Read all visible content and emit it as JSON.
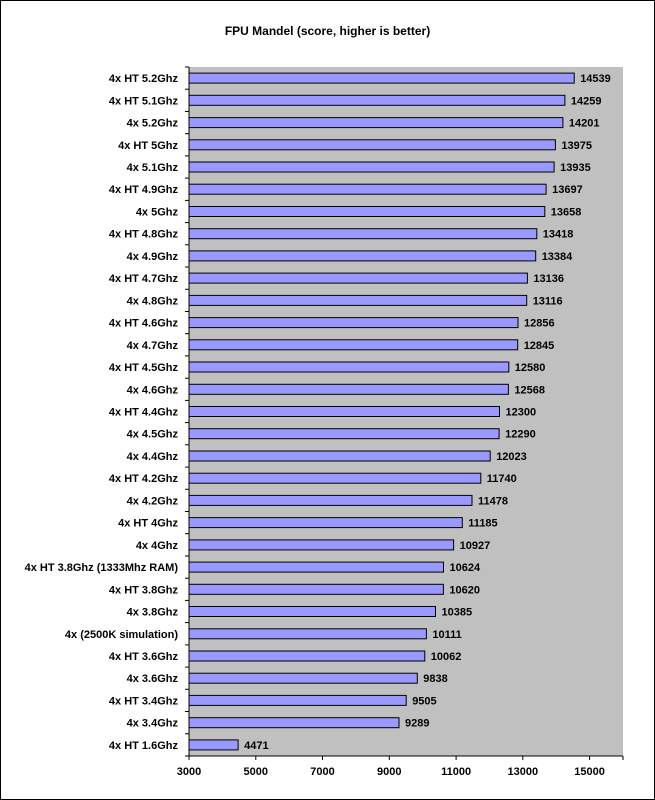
{
  "chart_data": {
    "type": "bar",
    "orientation": "horizontal",
    "title": "FPU Mandel (score, higher is better)",
    "xlabel": "",
    "ylabel": "",
    "xlim": [
      3000,
      16000
    ],
    "x_ticks": [
      "3000",
      "5000",
      "7000",
      "9000",
      "11000",
      "13000",
      "15000"
    ],
    "grid": false,
    "legend": "none",
    "categories": [
      "4x HT 5.2Ghz",
      "4x HT 5.1Ghz",
      "4x 5.2Ghz",
      "4x HT 5Ghz",
      "4x 5.1Ghz",
      "4x HT 4.9Ghz",
      "4x 5Ghz",
      "4x HT 4.8Ghz",
      "4x 4.9Ghz",
      "4x HT 4.7Ghz",
      "4x 4.8Ghz",
      "4x HT 4.6Ghz",
      "4x 4.7Ghz",
      "4x HT 4.5Ghz",
      "4x 4.6Ghz",
      "4x HT 4.4Ghz",
      "4x 4.5Ghz",
      "4x 4.4Ghz",
      "4x HT 4.2Ghz",
      "4x 4.2Ghz",
      "4x HT 4Ghz",
      "4x 4Ghz",
      "4x HT 3.8Ghz (1333Mhz RAM)",
      "4x HT 3.8Ghz",
      "4x 3.8Ghz",
      "4x (2500K simulation)",
      "4x HT 3.6Ghz",
      "4x 3.6Ghz",
      "4x HT 3.4Ghz",
      "4x 3.4Ghz",
      "4x HT 1.6Ghz"
    ],
    "values": [
      14539,
      14259,
      14201,
      13975,
      13935,
      13697,
      13658,
      13418,
      13384,
      13136,
      13116,
      12856,
      12845,
      12580,
      12568,
      12300,
      12290,
      12023,
      11740,
      11478,
      11185,
      10927,
      10624,
      10620,
      10385,
      10111,
      10062,
      9838,
      9505,
      9289,
      4471
    ],
    "colors": {
      "bar": "#9999FF",
      "bar_border": "#000000",
      "plot_background": "#C0C0C0",
      "text": "#000000"
    }
  }
}
